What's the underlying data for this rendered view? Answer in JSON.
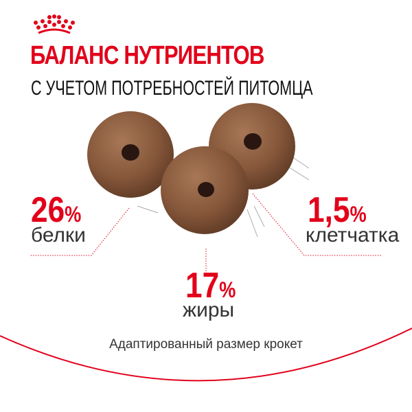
{
  "brand": {
    "logo": "crown-logo",
    "logo_color": "#e2001a"
  },
  "header": {
    "title": "БАЛАНС НУТРИЕНТОВ",
    "subtitle": "С УЧЕТОМ ПОТРЕБНОСТЕЙ ПИТОМЦА"
  },
  "nutrients": [
    {
      "value": "26",
      "unit": "%",
      "label": "белки"
    },
    {
      "value": "17",
      "unit": "%",
      "label": "жиры"
    },
    {
      "value": "1,5",
      "unit": "%",
      "label": "клетчатка"
    }
  ],
  "footer": {
    "text": "Адаптированный размер крокет"
  },
  "colors": {
    "accent": "#e2001a",
    "kibble": "#8a5a3c"
  }
}
